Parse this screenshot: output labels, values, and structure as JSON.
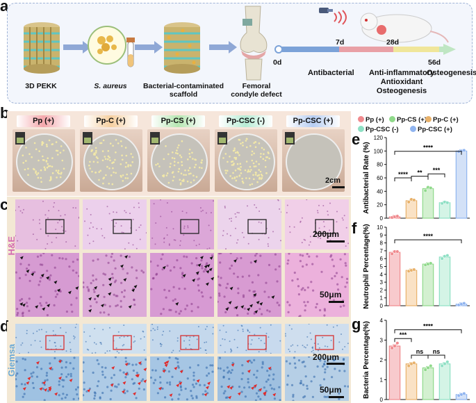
{
  "panel_labels": {
    "a": "a",
    "b": "b",
    "c": "c",
    "d": "d",
    "e": "e",
    "f": "f",
    "g": "g"
  },
  "schematic": {
    "steps": [
      {
        "label": "3D PEKK",
        "italic": false
      },
      {
        "label": "S. aureus",
        "italic": true
      },
      {
        "label": "Bacterial-contaminated scaffold",
        "italic": false
      },
      {
        "label": "Femoral condyle defect",
        "italic": false
      }
    ],
    "timeline": {
      "days": [
        "0d",
        "7d",
        "28d",
        "56d"
      ],
      "phase_antibacterial": "Antibacterial",
      "phase_middle": [
        "Anti-inflammatory",
        "Antioxidant",
        "Osteogenesis"
      ],
      "phase_end": "Osteogenesis"
    }
  },
  "groups": [
    {
      "label": "Pp (+)",
      "color": "#f4a7ab",
      "marker": "#f08a8e"
    },
    {
      "label": "Pp-C (+)",
      "color": "#f6cf9f",
      "marker": "#e8b16a"
    },
    {
      "label": "Pp-CS (+)",
      "color": "#b5e6b1",
      "marker": "#8fd98a"
    },
    {
      "label": "Pp-CSC (-)",
      "color": "#b7ecd5",
      "marker": "#8ee0c4"
    },
    {
      "label": "Pp-CSC (+)",
      "color": "#b6cdf2",
      "marker": "#8fb4f0"
    }
  ],
  "legend": [
    "Pp (+)",
    "Pp-CS (+)",
    "Pp-C (+)",
    "Pp-CSC (-)",
    "Pp-CSC (+)"
  ],
  "side_labels": {
    "he": "H&E",
    "giemsa": "Giemsa"
  },
  "scale_bars": {
    "dish": "2cm",
    "he_low": "200μm",
    "he_high": "50μm",
    "giemsa_low": "200μm",
    "giemsa_high": "50μm"
  },
  "chart_data": [
    {
      "type": "bar",
      "panel": "e",
      "ylabel": "Antibacterial Rate (%)",
      "ylim": [
        0,
        120
      ],
      "yticks": [
        0,
        20,
        40,
        60,
        80,
        100,
        120
      ],
      "categories": [
        "Pp (+)",
        "Pp-C (+)",
        "Pp-CS (+)",
        "Pp-CSC (-)",
        "Pp-CSC (+)"
      ],
      "values": [
        2,
        26,
        44,
        23,
        100
      ],
      "points": [
        [
          1,
          2,
          3
        ],
        [
          24,
          28,
          27
        ],
        [
          41,
          46,
          45
        ],
        [
          22,
          24,
          23
        ],
        [
          99,
          100,
          101
        ]
      ],
      "significance": [
        "****",
        "**",
        "***",
        "****"
      ]
    },
    {
      "type": "bar",
      "panel": "f",
      "ylabel": "Neutrophil Percentage(%)",
      "ylim": [
        0,
        10
      ],
      "yticks": [
        0,
        1,
        2,
        3,
        4,
        5,
        6,
        7,
        8,
        9,
        10
      ],
      "categories": [
        "Pp (+)",
        "Pp-C (+)",
        "Pp-CS (+)",
        "Pp-CSC (-)",
        "Pp-CSC (+)"
      ],
      "values": [
        6.8,
        4.5,
        5.3,
        6.2,
        0.2
      ],
      "points": [
        [
          6.6,
          6.9,
          6.9
        ],
        [
          4.4,
          4.5,
          4.6
        ],
        [
          5.2,
          5.3,
          5.4
        ],
        [
          6.0,
          6.3,
          6.4
        ],
        [
          0.1,
          0.2,
          0.3
        ]
      ],
      "significance": [
        "****"
      ]
    },
    {
      "type": "bar",
      "panel": "g",
      "ylabel": "Bacteria Percentage(%)",
      "ylim": [
        0,
        4
      ],
      "yticks": [
        0,
        1,
        2,
        3,
        4
      ],
      "categories": [
        "Pp (+)",
        "Pp-C (+)",
        "Pp-CS (+)",
        "Pp-CSC (-)",
        "Pp-CSC (+)"
      ],
      "values": [
        2.7,
        1.8,
        1.6,
        1.8,
        0.25
      ],
      "points": [
        [
          2.6,
          2.7,
          2.85
        ],
        [
          1.7,
          1.8,
          1.85
        ],
        [
          1.5,
          1.6,
          1.7
        ],
        [
          1.7,
          1.8,
          1.9
        ],
        [
          0.2,
          0.25,
          0.3
        ]
      ],
      "significance": [
        "***",
        "ns",
        "ns",
        "****"
      ]
    }
  ]
}
